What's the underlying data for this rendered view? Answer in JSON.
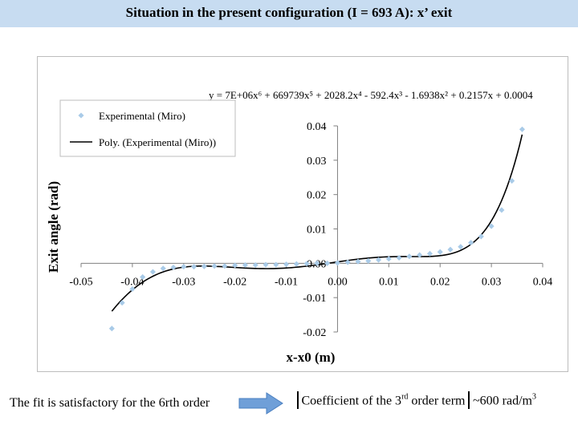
{
  "slide": {
    "title": "Situation in the present configuration (I = 693 A): x’ exit",
    "footer_left": "The fit is satisfactory for the 6rth order",
    "footer_right_pre": "Coefficient of the 3",
    "footer_right_sup": "rd",
    "footer_right_post": " order term",
    "footer_value_pre": "~600 rad/m",
    "footer_value_sup": "3",
    "colors": {
      "title_bar": "#c7dcf1",
      "marker": "#a9cbe8",
      "fit_line": "#000000",
      "arrow": "#6f9fd8"
    }
  },
  "chart_data": {
    "type": "scatter",
    "xlabel": "x-x0 (m)",
    "ylabel": "Exit angle (rad)",
    "xlim": [
      -0.05,
      0.04
    ],
    "ylim": [
      -0.02,
      0.04
    ],
    "xticks": [
      "-0.05",
      "-0.04",
      "-0.03",
      "-0.02",
      "-0.01",
      "0.00",
      "0.01",
      "0.02",
      "0.03",
      "0.04"
    ],
    "yticks": [
      "-0.02",
      "-0.01",
      "0.00",
      "0.01",
      "0.02",
      "0.03",
      "0.04"
    ],
    "equation": "y = 7E+06x⁶ + 669739x⁵ + 2028.2x⁴ - 592.4x³ - 1.6938x² + 0.2157x + 0.0004",
    "grid": false,
    "legend_position": "top-left",
    "series": [
      {
        "name": "Experimental (Miro)",
        "kind": "markers",
        "x": [
          -0.044,
          -0.042,
          -0.04,
          -0.038,
          -0.036,
          -0.034,
          -0.032,
          -0.03,
          -0.028,
          -0.026,
          -0.024,
          -0.022,
          -0.02,
          -0.018,
          -0.016,
          -0.014,
          -0.012,
          -0.01,
          -0.008,
          -0.006,
          -0.004,
          -0.002,
          0.0,
          0.002,
          0.004,
          0.006,
          0.008,
          0.01,
          0.012,
          0.014,
          0.016,
          0.018,
          0.02,
          0.022,
          0.024,
          0.026,
          0.028,
          0.03,
          0.032,
          0.034,
          0.036
        ],
        "y": [
          -0.019,
          -0.0115,
          -0.0075,
          -0.004,
          -0.0025,
          -0.0015,
          -0.0012,
          -0.001,
          -0.001,
          -0.0009,
          -0.0008,
          -0.0008,
          -0.0006,
          -0.0005,
          -0.0005,
          -0.0004,
          -0.0004,
          -0.0003,
          -0.0002,
          -0.0001,
          0.0,
          0.0,
          0.0001,
          0.0003,
          0.0005,
          0.0007,
          0.001,
          0.0013,
          0.0016,
          0.002,
          0.0024,
          0.0028,
          0.0033,
          0.004,
          0.0048,
          0.006,
          0.0078,
          0.0108,
          0.0155,
          0.024,
          0.039
        ]
      },
      {
        "name": "Poly. (Experimental (Miro))",
        "kind": "fit",
        "coefficients": [
          0.0004,
          0.2157,
          -1.6938,
          -592.4,
          2028.2,
          669739,
          7000000
        ],
        "x_range": [
          -0.044,
          0.036
        ]
      }
    ]
  }
}
